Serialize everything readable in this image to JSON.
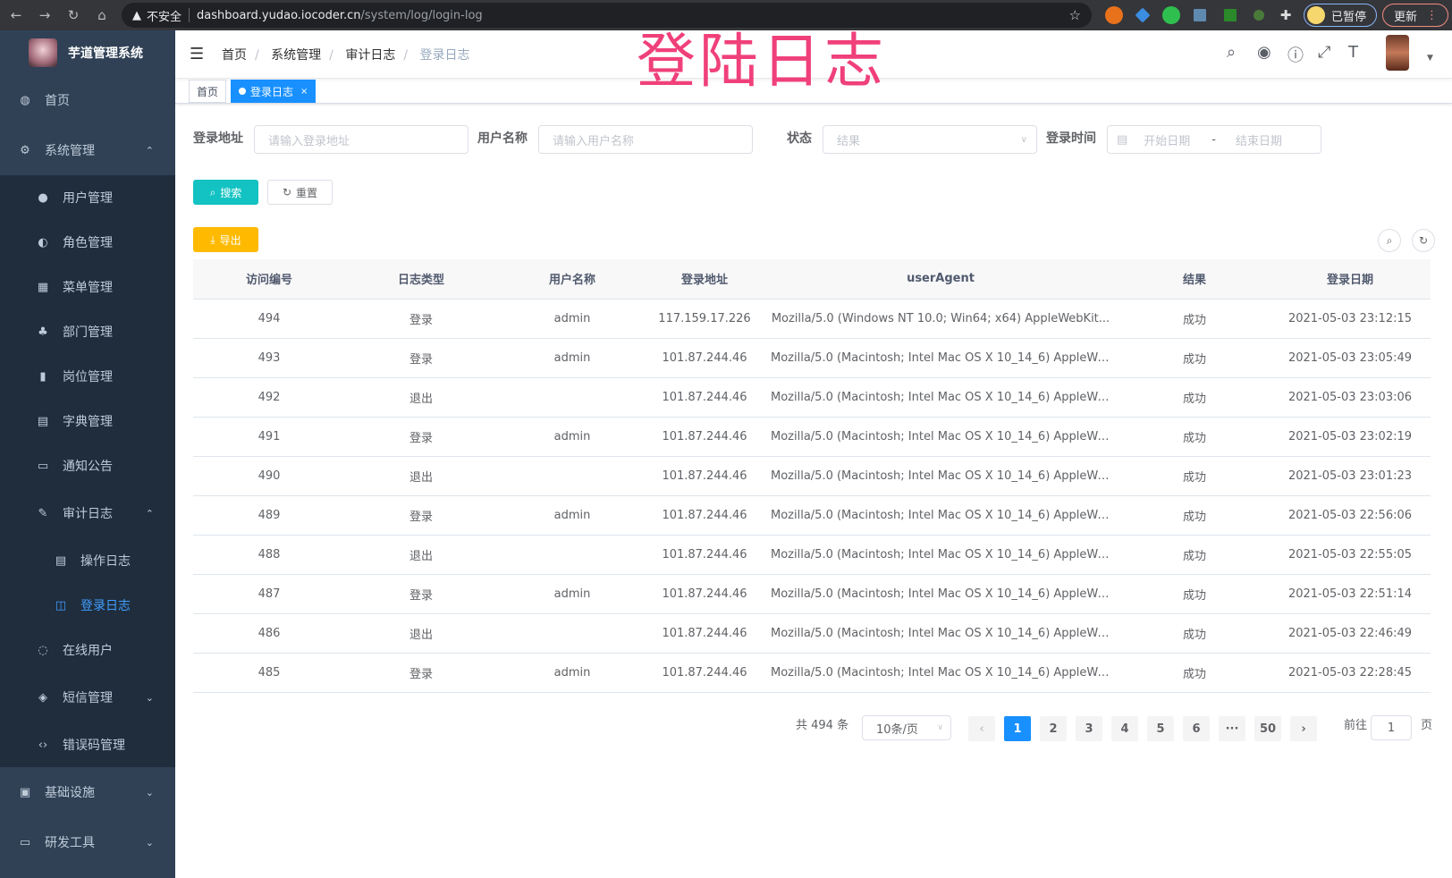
{
  "browser": {
    "security": "不安全",
    "url_host": "dashboard.yudao.iocoder.cn",
    "url_path": "/system/log/login-log",
    "paused_label": "已暂停",
    "update_label": "更新"
  },
  "overlay_title": "登陆日志",
  "sidebar": {
    "title": "芋道管理系统",
    "items": [
      {
        "label": "首页",
        "icon": "dashboard-icon"
      },
      {
        "label": "系统管理",
        "icon": "gear-icon",
        "expanded": true
      },
      {
        "label": "用户管理",
        "icon": "user-icon"
      },
      {
        "label": "角色管理",
        "icon": "peoples-icon"
      },
      {
        "label": "菜单管理",
        "icon": "tree-table-icon"
      },
      {
        "label": "部门管理",
        "icon": "tree-icon"
      },
      {
        "label": "岗位管理",
        "icon": "post-icon"
      },
      {
        "label": "字典管理",
        "icon": "dict-icon"
      },
      {
        "label": "通知公告",
        "icon": "message-icon"
      },
      {
        "label": "审计日志",
        "icon": "log-icon",
        "expanded": true
      },
      {
        "label": "操作日志",
        "icon": "form-icon"
      },
      {
        "label": "登录日志",
        "icon": "logininfor-icon",
        "active": true
      },
      {
        "label": "在线用户",
        "icon": "online-icon"
      },
      {
        "label": "短信管理",
        "icon": "validcode-icon"
      },
      {
        "label": "错误码管理",
        "icon": "code-icon"
      },
      {
        "label": "基础设施",
        "icon": "monitor-icon"
      },
      {
        "label": "研发工具",
        "icon": "tool-icon"
      }
    ]
  },
  "breadcrumb": [
    "首页",
    "系统管理",
    "审计日志",
    "登录日志"
  ],
  "tags": [
    {
      "label": "首页"
    },
    {
      "label": "登录日志",
      "active": true
    }
  ],
  "filters": {
    "ip_label": "登录地址",
    "ip_placeholder": "请输入登录地址",
    "user_label": "用户名称",
    "user_placeholder": "请输入用户名称",
    "status_label": "状态",
    "status_placeholder": "结果",
    "time_label": "登录时间",
    "start_placeholder": "开始日期",
    "range_sep": "-",
    "end_placeholder": "结束日期",
    "search": "搜索",
    "reset": "重置",
    "export": "导出"
  },
  "table": {
    "columns": [
      "访问编号",
      "日志类型",
      "用户名称",
      "登录地址",
      "userAgent",
      "结果",
      "登录日期"
    ],
    "rows": [
      [
        "494",
        "登录",
        "admin",
        "117.159.17.226",
        "Mozilla/5.0 (Windows NT 10.0; Win64; x64) AppleWebKit...",
        "成功",
        "2021-05-03 23:12:15"
      ],
      [
        "493",
        "登录",
        "admin",
        "101.87.244.46",
        "Mozilla/5.0 (Macintosh; Intel Mac OS X 10_14_6) AppleWe...",
        "成功",
        "2021-05-03 23:05:49"
      ],
      [
        "492",
        "退出",
        "",
        "101.87.244.46",
        "Mozilla/5.0 (Macintosh; Intel Mac OS X 10_14_6) AppleWe...",
        "成功",
        "2021-05-03 23:03:06"
      ],
      [
        "491",
        "登录",
        "admin",
        "101.87.244.46",
        "Mozilla/5.0 (Macintosh; Intel Mac OS X 10_14_6) AppleWe...",
        "成功",
        "2021-05-03 23:02:19"
      ],
      [
        "490",
        "退出",
        "",
        "101.87.244.46",
        "Mozilla/5.0 (Macintosh; Intel Mac OS X 10_14_6) AppleWe...",
        "成功",
        "2021-05-03 23:01:23"
      ],
      [
        "489",
        "登录",
        "admin",
        "101.87.244.46",
        "Mozilla/5.0 (Macintosh; Intel Mac OS X 10_14_6) AppleWe...",
        "成功",
        "2021-05-03 22:56:06"
      ],
      [
        "488",
        "退出",
        "",
        "101.87.244.46",
        "Mozilla/5.0 (Macintosh; Intel Mac OS X 10_14_6) AppleWe...",
        "成功",
        "2021-05-03 22:55:05"
      ],
      [
        "487",
        "登录",
        "admin",
        "101.87.244.46",
        "Mozilla/5.0 (Macintosh; Intel Mac OS X 10_14_6) AppleWe...",
        "成功",
        "2021-05-03 22:51:14"
      ],
      [
        "486",
        "退出",
        "",
        "101.87.244.46",
        "Mozilla/5.0 (Macintosh; Intel Mac OS X 10_14_6) AppleWe...",
        "成功",
        "2021-05-03 22:46:49"
      ],
      [
        "485",
        "登录",
        "admin",
        "101.87.244.46",
        "Mozilla/5.0 (Macintosh; Intel Mac OS X 10_14_6) AppleWe...",
        "成功",
        "2021-05-03 22:28:45"
      ]
    ]
  },
  "pagination": {
    "total": "共 494 条",
    "page_size": "10条/页",
    "pages": [
      "1",
      "2",
      "3",
      "4",
      "5",
      "6",
      "···",
      "50"
    ],
    "current": "1",
    "goto_label": "前往",
    "goto_value": "1",
    "goto_suffix": "页"
  },
  "colors": {
    "sidebar": "#304156",
    "submenu": "#1f2d3d",
    "primary": "#1890ff",
    "search_btn": "#13c2c2",
    "export_btn": "#ffba00",
    "overlay": "#f0407a"
  }
}
